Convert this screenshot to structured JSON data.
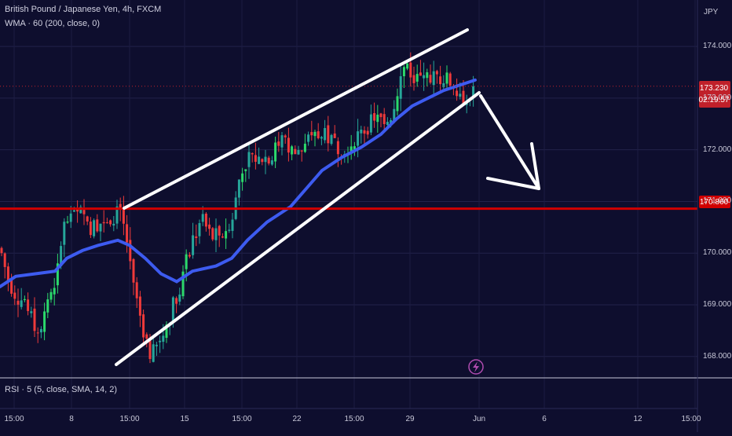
{
  "header": {
    "symbol_line": "British Pound / Japanese Yen, 4h, FXCM",
    "indicator_line": "WMA · 60 (200, close, 0)",
    "currency": "JPY"
  },
  "rsi_label": "RSI · 5 (5, close, SMA, 14, 2)",
  "price_tags": {
    "last_price": "173.230",
    "countdown": "02:19:57",
    "level_price": "170.860"
  },
  "colors": {
    "background": "#0e0e2e",
    "up_candle": "#26a69a",
    "up_candle_bright": "#2bd96b",
    "down_candle": "#ef3a3a",
    "wma": "#3d5bf0",
    "resistance_line": "#d10000",
    "channel_lines": "#ffffff",
    "last_price_tag": "#c0202a",
    "level_tag": "#d10000"
  },
  "icons": {
    "event_marker": "lightning-icon"
  },
  "chart_data": {
    "type": "candlestick",
    "timeframe": "4h",
    "ylim": [
      167.6,
      174.9
    ],
    "yticks": [
      "174.000",
      "173.000",
      "172.000",
      "171.000",
      "170.000",
      "169.000",
      "168.000"
    ],
    "xticks": [
      "15:00",
      "8",
      "15:00",
      "15",
      "15:00",
      "22",
      "15:00",
      "29",
      "Jun",
      "6",
      "12",
      "15:00"
    ],
    "grid": true,
    "horizontal_level": 170.86,
    "last_price": 173.23,
    "channel_upper": {
      "from": [
        0.47,
        170.7
      ],
      "to": [
        0.87,
        174.5
      ]
    },
    "channel_lower": {
      "from": [
        0.225,
        167.5
      ],
      "to": [
        0.889,
        173.1
      ]
    },
    "arrow": {
      "from": [
        0.91,
        173.2
      ],
      "to": [
        1.0,
        171.1
      ]
    }
  }
}
